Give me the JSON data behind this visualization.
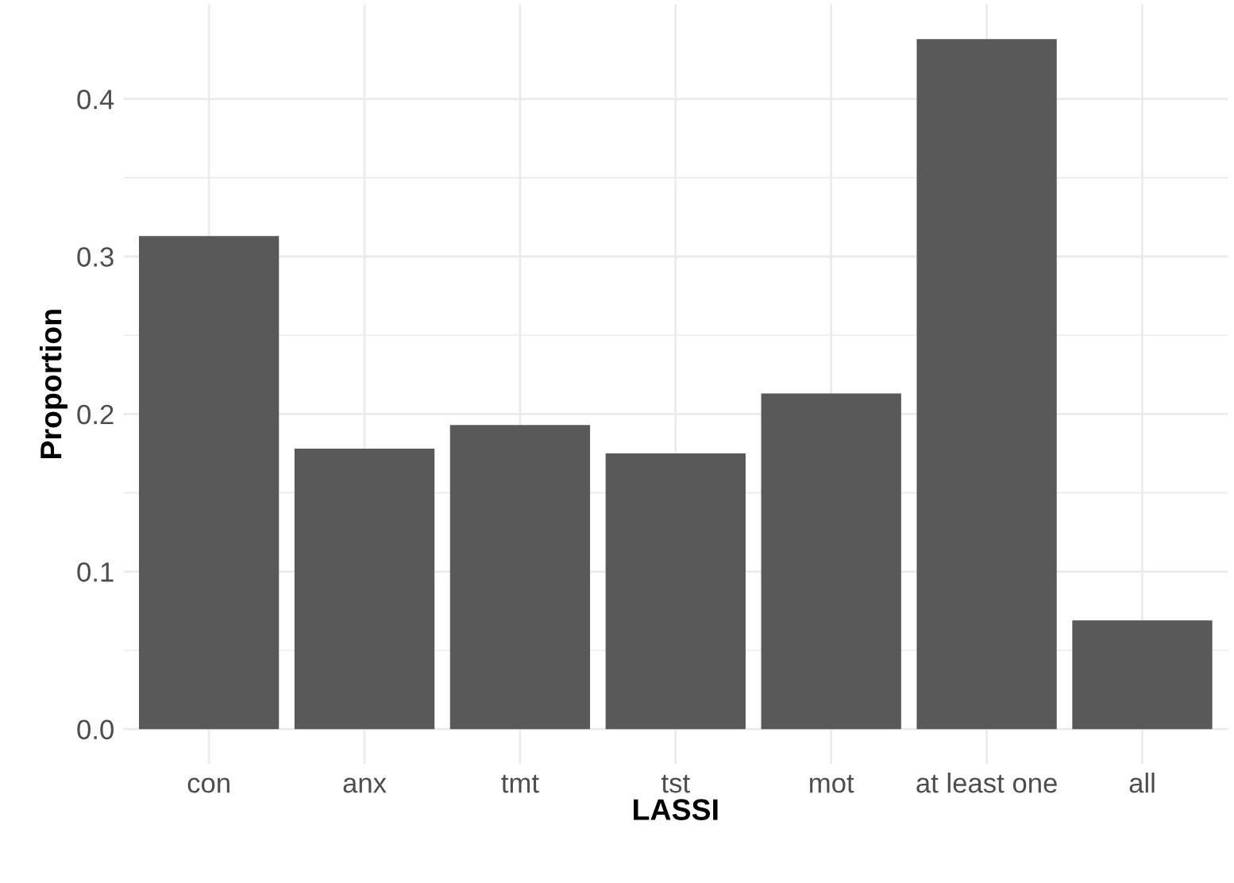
{
  "chart_data": {
    "type": "bar",
    "xlabel": "LASSI",
    "ylabel": "Proportion",
    "categories": [
      "con",
      "anx",
      "tmt",
      "tst",
      "mot",
      "at least one",
      "all"
    ],
    "values": [
      0.313,
      0.178,
      0.193,
      0.175,
      0.213,
      0.438,
      0.069
    ],
    "color": "#595959",
    "ylim": [
      -0.022,
      0.46
    ],
    "yticks": [
      {
        "value": 0,
        "label": "0.0"
      },
      {
        "value": 0.1,
        "label": "0.1"
      },
      {
        "value": 0.2,
        "label": "0.2"
      },
      {
        "value": 0.3,
        "label": "0.3"
      },
      {
        "value": 0.4,
        "label": "0.4"
      }
    ],
    "grid": true
  }
}
